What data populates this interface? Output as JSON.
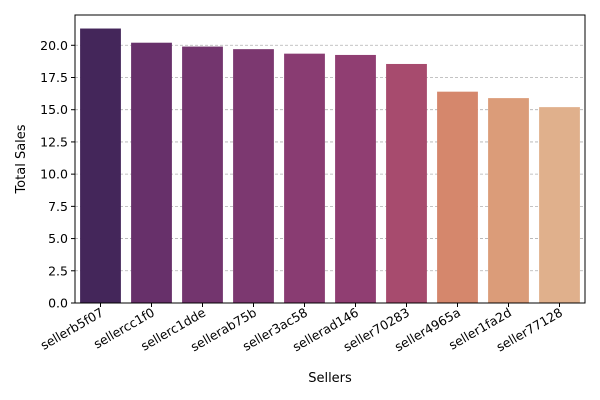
{
  "chart_data": {
    "type": "bar",
    "title": "",
    "xlabel": "Sellers",
    "ylabel": "Total Sales",
    "categories": [
      "sellerb5f07",
      "sellercc1f0",
      "sellerc1dde",
      "sellerab75b",
      "seller3ac58",
      "sellerad146",
      "seller70283",
      "seller4965a",
      "seller1fa2d",
      "seller77128"
    ],
    "values": [
      21.3,
      20.2,
      19.9,
      19.7,
      19.35,
      19.25,
      18.55,
      16.4,
      15.9,
      15.2
    ],
    "colors": [
      "#44265a",
      "#67306a",
      "#73356e",
      "#7c3870",
      "#893c72",
      "#903e72",
      "#a74b6e",
      "#d5876c",
      "#db9c79",
      "#e0b08c"
    ],
    "ylim": [
      0,
      22.35
    ],
    "yticks": [
      "0.0",
      "2.5",
      "5.0",
      "7.5",
      "10.0",
      "12.5",
      "15.0",
      "17.5",
      "20.0"
    ],
    "ytick_values": [
      0,
      2.5,
      5,
      7.5,
      10,
      12.5,
      15,
      17.5,
      20
    ],
    "grid": "y-dashed"
  }
}
